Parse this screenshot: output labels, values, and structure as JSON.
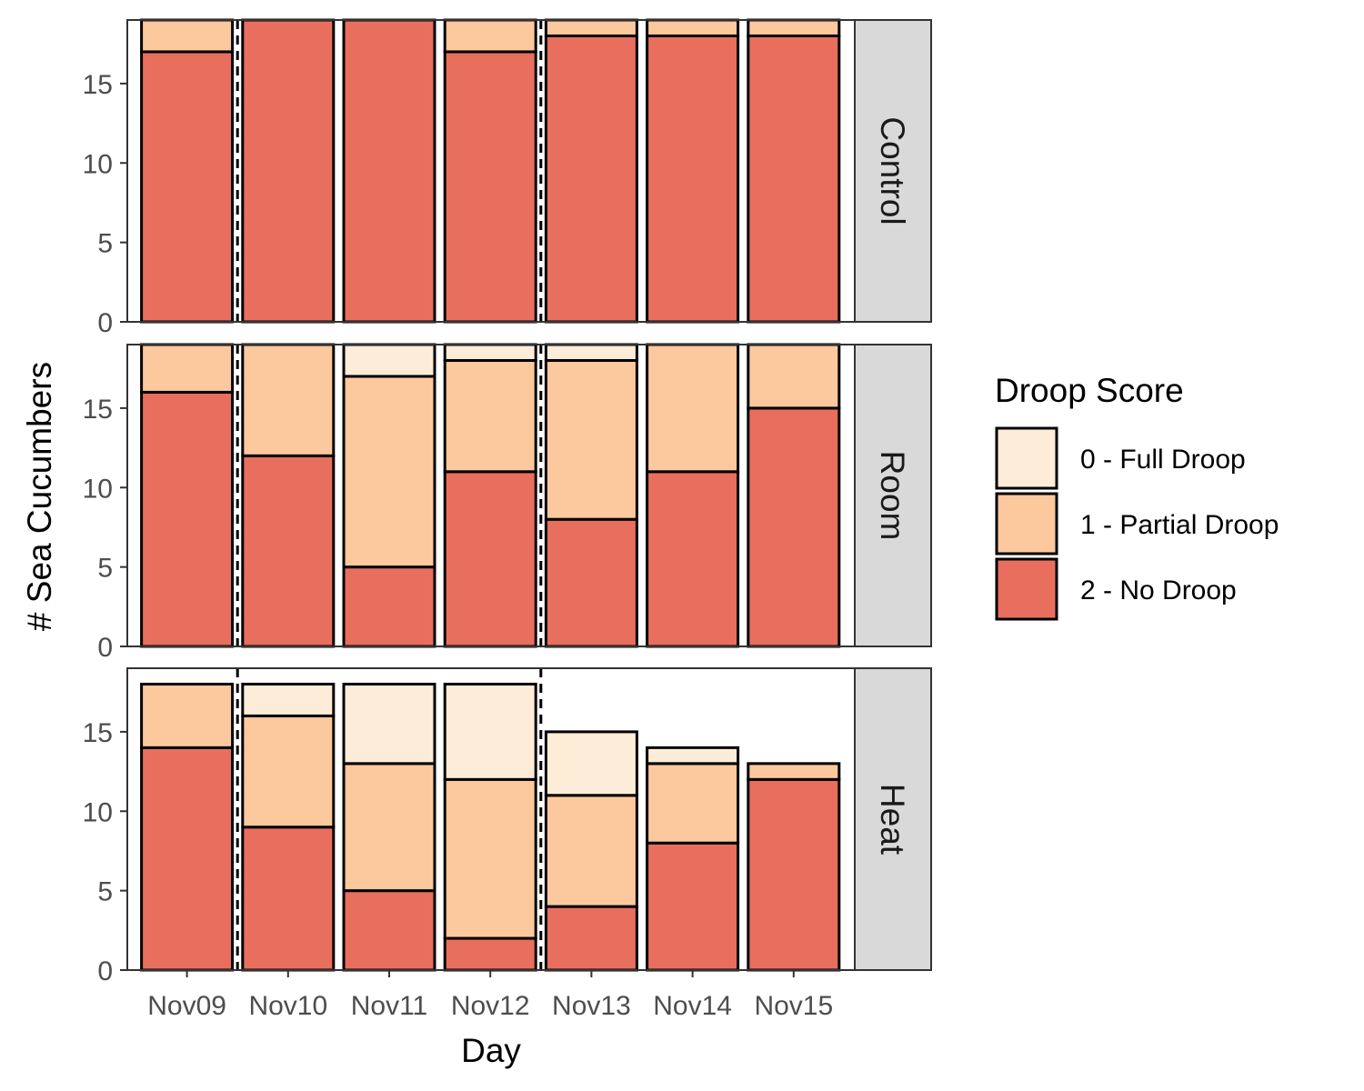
{
  "chart_data": {
    "type": "bar",
    "stacked": true,
    "xlabel": "Day",
    "ylabel": "# Sea Cucumbers",
    "categories": [
      "Nov09",
      "Nov10",
      "Nov11",
      "Nov12",
      "Nov13",
      "Nov14",
      "Nov15"
    ],
    "ylim": [
      0,
      19
    ],
    "yticks": [
      0,
      5,
      10,
      15
    ],
    "legend": {
      "title": "Droop Score",
      "placement": "right",
      "items": [
        {
          "key": "full",
          "label": "0 - Full Droop",
          "color": "#fdedd8"
        },
        {
          "key": "partial",
          "label": "1 - Partial Droop",
          "color": "#fcc89e"
        },
        {
          "key": "none",
          "label": "2 - No Droop",
          "color": "#e86e5e"
        }
      ]
    },
    "vlines_between": [
      {
        "after_category": "Nov09",
        "style": "dashed"
      },
      {
        "after_category": "Nov12",
        "style": "dashed"
      }
    ],
    "panels": [
      {
        "name": "Control",
        "series": [
          {
            "key": "none",
            "values": [
              17,
              19,
              19,
              17,
              18,
              18,
              18
            ]
          },
          {
            "key": "partial",
            "values": [
              2,
              0,
              0,
              2,
              1,
              1,
              1
            ]
          },
          {
            "key": "full",
            "values": [
              0,
              0,
              0,
              0,
              0,
              0,
              0
            ]
          }
        ]
      },
      {
        "name": "Room",
        "series": [
          {
            "key": "none",
            "values": [
              16,
              12,
              5,
              11,
              8,
              11,
              15
            ]
          },
          {
            "key": "partial",
            "values": [
              3,
              7,
              12,
              7,
              10,
              8,
              4
            ]
          },
          {
            "key": "full",
            "values": [
              0,
              0,
              2,
              1,
              1,
              0,
              0
            ]
          }
        ]
      },
      {
        "name": "Heat",
        "series": [
          {
            "key": "none",
            "values": [
              14,
              9,
              5,
              2,
              4,
              8,
              12
            ]
          },
          {
            "key": "partial",
            "values": [
              4,
              7,
              8,
              10,
              7,
              5,
              1
            ]
          },
          {
            "key": "full",
            "values": [
              0,
              2,
              5,
              6,
              4,
              1,
              0
            ]
          }
        ]
      }
    ]
  }
}
